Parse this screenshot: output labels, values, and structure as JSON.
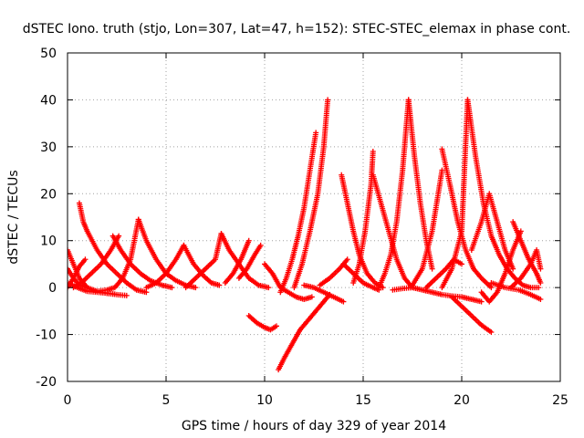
{
  "chart_data": {
    "type": "scatter",
    "title": "dSTEC Iono. truth (stjo, Lon=307, Lat=47, h=152): STEC-STEC_elemax in phase cont.",
    "xlabel": "GPS time / hours of day 329 of year 2014",
    "ylabel": "dSTEC  / TECUs",
    "xlim": [
      0,
      25
    ],
    "ylim": [
      -20,
      50
    ],
    "xticks": [
      0,
      5,
      10,
      15,
      20,
      25
    ],
    "yticks": [
      -20,
      -10,
      0,
      10,
      20,
      30,
      40,
      50
    ],
    "grid": true,
    "marker": "plus",
    "series_color": "#ff0000",
    "arcs": [
      {
        "x": [
          0.0,
          0.3,
          0.6,
          1.0,
          1.5,
          2.0,
          2.4
        ],
        "y": [
          8,
          5,
          2,
          0,
          -0.8,
          -1.2,
          -1.4
        ]
      },
      {
        "x": [
          0.0,
          0.3,
          0.6,
          1.0
        ],
        "y": [
          4,
          2,
          0.5,
          0
        ]
      },
      {
        "x": [
          0.0,
          0.3,
          0.6,
          0.9
        ],
        "y": [
          0,
          2,
          4.5,
          6
        ]
      },
      {
        "x": [
          0.6,
          0.8,
          1.0,
          1.5,
          2.0,
          2.5,
          3.0,
          3.5,
          4.0
        ],
        "y": [
          18,
          14,
          12,
          8,
          5,
          3,
          1,
          -0.5,
          -1
        ]
      },
      {
        "x": [
          0.0,
          0.5,
          1.0,
          1.5,
          2.0,
          2.5,
          3.0
        ],
        "y": [
          1,
          0,
          -0.8,
          -1,
          -1.2,
          -1.5,
          -1.7
        ]
      },
      {
        "x": [
          0.3,
          0.7,
          1.2,
          1.7,
          2.2,
          2.6
        ],
        "y": [
          0,
          1,
          3,
          5,
          8,
          11
        ]
      },
      {
        "x": [
          2.3,
          2.7,
          3.2,
          3.7,
          4.2,
          4.8,
          5.3
        ],
        "y": [
          11,
          8,
          5,
          3,
          1.5,
          0.5,
          0
        ]
      },
      {
        "x": [
          1.5,
          2.0,
          2.4,
          2.8,
          3.2,
          3.6
        ],
        "y": [
          -0.8,
          -0.5,
          0,
          2,
          6,
          14.5
        ]
      },
      {
        "x": [
          3.6,
          4.0,
          4.5,
          5.0,
          5.5,
          6.0,
          6.5
        ],
        "y": [
          14.5,
          10,
          6,
          3,
          1.5,
          0.5,
          0
        ]
      },
      {
        "x": [
          4.0,
          4.5,
          5.0,
          5.5,
          5.9
        ],
        "y": [
          0,
          1,
          3,
          6,
          9
        ]
      },
      {
        "x": [
          5.9,
          6.4,
          6.9,
          7.3,
          7.7
        ],
        "y": [
          9,
          5,
          2.5,
          1,
          0.5
        ]
      },
      {
        "x": [
          6.0,
          6.5,
          7.0,
          7.5,
          7.8
        ],
        "y": [
          0,
          2,
          4,
          6,
          11.5
        ]
      },
      {
        "x": [
          7.8,
          8.2,
          8.7,
          9.2,
          9.7,
          10.2
        ],
        "y": [
          11.5,
          8,
          5,
          2,
          0.5,
          0
        ]
      },
      {
        "x": [
          8.0,
          8.4,
          8.8,
          9.2
        ],
        "y": [
          1,
          3,
          6,
          10
        ]
      },
      {
        "x": [
          8.7,
          9.1,
          9.5,
          9.8
        ],
        "y": [
          2,
          4,
          7,
          9
        ]
      },
      {
        "x": [
          9.2,
          9.6,
          10.0,
          10.3,
          10.6
        ],
        "y": [
          -6,
          -7.5,
          -8.5,
          -9,
          -8.2
        ]
      },
      {
        "x": [
          10.7,
          11.0,
          11.4,
          11.8,
          12.2,
          12.6,
          13.0,
          13.3
        ],
        "y": [
          -17.5,
          -15,
          -12,
          -9,
          -7,
          -5,
          -3,
          -1.5
        ]
      },
      {
        "x": [
          10.0,
          10.4,
          10.8,
          11.2,
          11.6,
          12.0,
          12.4
        ],
        "y": [
          5,
          3,
          0,
          -1,
          -2,
          -2.5,
          -2
        ]
      },
      {
        "x": [
          10.8,
          11.1,
          11.4,
          11.7,
          12.0,
          12.3,
          12.6
        ],
        "y": [
          -1,
          2,
          6,
          11,
          17,
          25,
          33
        ]
      },
      {
        "x": [
          11.5,
          11.9,
          12.3,
          12.7,
          13.0,
          13.2
        ],
        "y": [
          0,
          5,
          12,
          20,
          30,
          40
        ]
      },
      {
        "x": [
          12.0,
          12.5,
          13.0,
          13.5,
          14.0
        ],
        "y": [
          0.5,
          0,
          -1,
          -2,
          -3
        ]
      },
      {
        "x": [
          12.8,
          13.3,
          13.8,
          14.2
        ],
        "y": [
          0.5,
          2,
          4,
          6
        ]
      },
      {
        "x": [
          13.9,
          14.2,
          14.5,
          14.8,
          15.2,
          15.6,
          16.0
        ],
        "y": [
          24,
          18,
          12,
          7,
          3,
          1,
          0
        ]
      },
      {
        "x": [
          14.0,
          14.5,
          15.0,
          15.5,
          15.8
        ],
        "y": [
          5,
          3,
          1,
          0,
          -0.5
        ]
      },
      {
        "x": [
          14.5,
          14.8,
          15.1,
          15.4,
          15.5
        ],
        "y": [
          1,
          5,
          12,
          22,
          29
        ]
      },
      {
        "x": [
          15.5,
          15.9,
          16.3,
          16.7,
          17.1,
          17.5
        ],
        "y": [
          24,
          18,
          12,
          6,
          2,
          0
        ]
      },
      {
        "x": [
          15.8,
          16.1,
          16.4,
          16.7,
          17.0,
          17.3
        ],
        "y": [
          0,
          3,
          7,
          14,
          25,
          40
        ]
      },
      {
        "x": [
          17.3,
          17.6,
          17.9,
          18.2,
          18.5
        ],
        "y": [
          40,
          28,
          18,
          10,
          4
        ]
      },
      {
        "x": [
          16.5,
          17.0,
          17.5,
          18.0,
          18.5,
          19.0,
          19.5,
          20.0,
          20.5,
          21.0
        ],
        "y": [
          -0.5,
          -0.2,
          0,
          -0.5,
          -1,
          -1.5,
          -1.8,
          -2,
          -2.5,
          -3
        ]
      },
      {
        "x": [
          17.5,
          18.0,
          18.5,
          19.0
        ],
        "y": [
          0.5,
          4,
          12,
          25
        ]
      },
      {
        "x": [
          19.0,
          19.4,
          19.8,
          20.2,
          20.6,
          21.0,
          21.5
        ],
        "y": [
          29.5,
          22,
          14,
          8,
          4,
          2,
          0
        ]
      },
      {
        "x": [
          18.2,
          18.7,
          19.2,
          19.6,
          20.0
        ],
        "y": [
          0,
          2,
          4,
          6,
          5
        ]
      },
      {
        "x": [
          19.0,
          19.5,
          20.0,
          20.3
        ],
        "y": [
          0,
          4,
          12,
          40
        ]
      },
      {
        "x": [
          20.3,
          20.7,
          21.1,
          21.5,
          21.9,
          22.3,
          22.7,
          23.1,
          23.5,
          23.9
        ],
        "y": [
          40,
          28,
          18,
          11,
          7,
          4,
          2,
          0.5,
          0,
          0
        ]
      },
      {
        "x": [
          19.5,
          20.0,
          20.5,
          21.0,
          21.5
        ],
        "y": [
          -2,
          -4,
          -6,
          -8,
          -9.5
        ]
      },
      {
        "x": [
          20.5,
          21.0,
          21.4,
          21.8,
          22.2,
          22.6
        ],
        "y": [
          8,
          14,
          20,
          14,
          8,
          4
        ]
      },
      {
        "x": [
          21.0,
          21.4,
          21.8,
          22.2,
          22.6,
          23.0
        ],
        "y": [
          -1,
          -3,
          -1,
          3,
          8,
          12
        ]
      },
      {
        "x": [
          22.6,
          23.0,
          23.4,
          23.8,
          24.0
        ],
        "y": [
          14,
          10,
          6,
          3,
          1
        ]
      },
      {
        "x": [
          22.5,
          23.0,
          23.5,
          23.8,
          24.0
        ],
        "y": [
          0,
          2,
          5,
          8,
          4
        ]
      },
      {
        "x": [
          21.5,
          22.2,
          22.9,
          23.5,
          24.0
        ],
        "y": [
          1,
          0,
          -0.5,
          -1.5,
          -2.5
        ]
      }
    ]
  }
}
